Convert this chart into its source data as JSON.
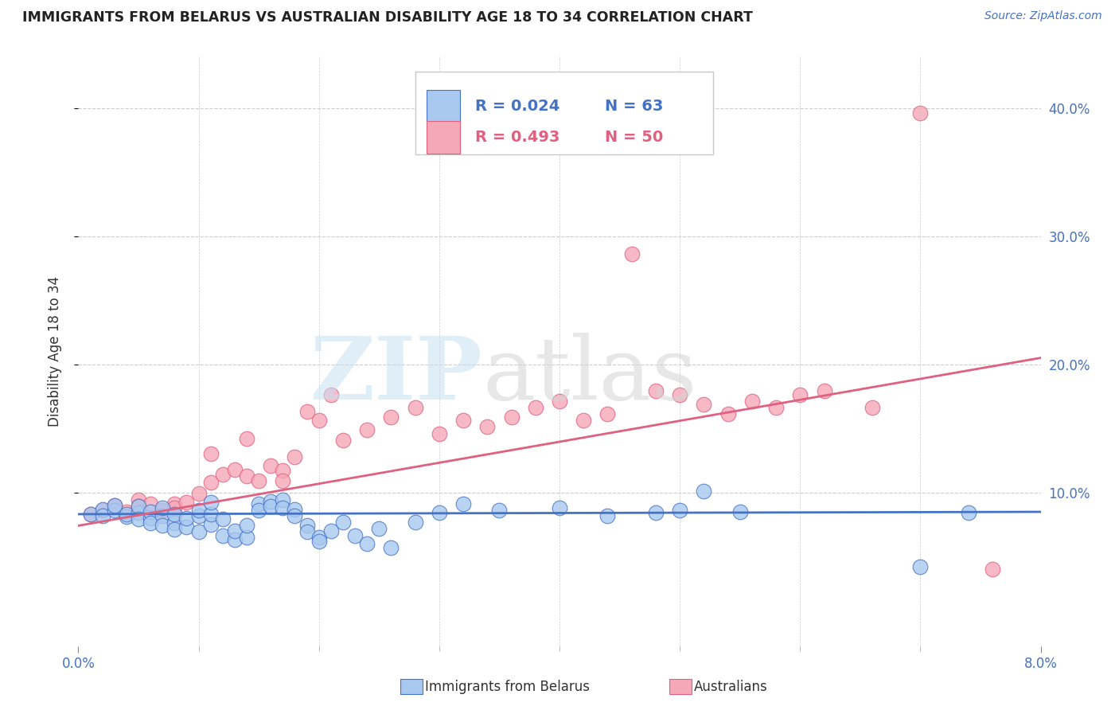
{
  "title": "IMMIGRANTS FROM BELARUS VS AUSTRALIAN DISABILITY AGE 18 TO 34 CORRELATION CHART",
  "source": "Source: ZipAtlas.com",
  "ylabel": "Disability Age 18 to 34",
  "legend_blue_label": "Immigrants from Belarus",
  "legend_pink_label": "Australians",
  "legend_blue_r": "R = 0.024",
  "legend_blue_n": "N = 63",
  "legend_pink_r": "R = 0.493",
  "legend_pink_n": "N = 50",
  "blue_color": "#A8C8F0",
  "pink_color": "#F5A8B8",
  "blue_line_color": "#4472C4",
  "pink_line_color": "#E06080",
  "title_color": "#222222",
  "axis_color": "#4472C4",
  "xlim": [
    0.0,
    0.08
  ],
  "ylim": [
    -0.02,
    0.44
  ],
  "yticks": [
    0.1,
    0.2,
    0.3,
    0.4
  ],
  "ytick_labels": [
    "10.0%",
    "20.0%",
    "30.0%",
    "40.0%"
  ],
  "xtick_show": [
    0.0,
    0.08
  ],
  "xtick_labels_show": [
    "0.0%",
    "8.0%"
  ],
  "xtick_minor": [
    0.01,
    0.02,
    0.03,
    0.04,
    0.05,
    0.06,
    0.07
  ],
  "blue_scatter_x": [
    0.001,
    0.002,
    0.002,
    0.003,
    0.003,
    0.004,
    0.004,
    0.005,
    0.005,
    0.005,
    0.006,
    0.006,
    0.006,
    0.007,
    0.007,
    0.007,
    0.008,
    0.008,
    0.008,
    0.009,
    0.009,
    0.01,
    0.01,
    0.01,
    0.011,
    0.011,
    0.011,
    0.012,
    0.012,
    0.013,
    0.013,
    0.014,
    0.014,
    0.015,
    0.015,
    0.016,
    0.016,
    0.017,
    0.017,
    0.018,
    0.018,
    0.019,
    0.019,
    0.02,
    0.02,
    0.021,
    0.022,
    0.023,
    0.024,
    0.025,
    0.026,
    0.028,
    0.03,
    0.032,
    0.035,
    0.04,
    0.044,
    0.048,
    0.05,
    0.052,
    0.055,
    0.07,
    0.074
  ],
  "blue_scatter_y": [
    0.083,
    0.087,
    0.082,
    0.086,
    0.09,
    0.081,
    0.083,
    0.084,
    0.089,
    0.079,
    0.08,
    0.085,
    0.076,
    0.082,
    0.088,
    0.074,
    0.076,
    0.083,
    0.071,
    0.073,
    0.08,
    0.082,
    0.086,
    0.069,
    0.075,
    0.083,
    0.092,
    0.079,
    0.066,
    0.063,
    0.07,
    0.065,
    0.074,
    0.091,
    0.086,
    0.093,
    0.089,
    0.094,
    0.088,
    0.087,
    0.082,
    0.074,
    0.069,
    0.065,
    0.062,
    0.07,
    0.077,
    0.066,
    0.06,
    0.072,
    0.057,
    0.077,
    0.084,
    0.091,
    0.086,
    0.088,
    0.082,
    0.084,
    0.086,
    0.101,
    0.085,
    0.042,
    0.084
  ],
  "pink_scatter_x": [
    0.001,
    0.002,
    0.003,
    0.004,
    0.005,
    0.005,
    0.006,
    0.007,
    0.008,
    0.008,
    0.009,
    0.01,
    0.011,
    0.011,
    0.012,
    0.013,
    0.014,
    0.014,
    0.015,
    0.016,
    0.017,
    0.017,
    0.018,
    0.019,
    0.02,
    0.021,
    0.022,
    0.024,
    0.026,
    0.028,
    0.03,
    0.032,
    0.034,
    0.036,
    0.038,
    0.04,
    0.042,
    0.044,
    0.046,
    0.048,
    0.05,
    0.052,
    0.054,
    0.056,
    0.058,
    0.06,
    0.062,
    0.066,
    0.07,
    0.076
  ],
  "pink_scatter_y": [
    0.083,
    0.086,
    0.09,
    0.085,
    0.094,
    0.089,
    0.091,
    0.086,
    0.091,
    0.088,
    0.092,
    0.099,
    0.108,
    0.13,
    0.114,
    0.118,
    0.113,
    0.142,
    0.109,
    0.121,
    0.117,
    0.109,
    0.128,
    0.163,
    0.156,
    0.176,
    0.141,
    0.149,
    0.159,
    0.166,
    0.146,
    0.156,
    0.151,
    0.159,
    0.166,
    0.171,
    0.156,
    0.161,
    0.286,
    0.179,
    0.176,
    0.169,
    0.161,
    0.171,
    0.166,
    0.176,
    0.179,
    0.166,
    0.396,
    0.04
  ],
  "blue_trend_x": [
    0.0,
    0.08
  ],
  "blue_trend_y": [
    0.083,
    0.0848
  ],
  "pink_trend_x": [
    0.0,
    0.08
  ],
  "pink_trend_y": [
    0.074,
    0.205
  ]
}
